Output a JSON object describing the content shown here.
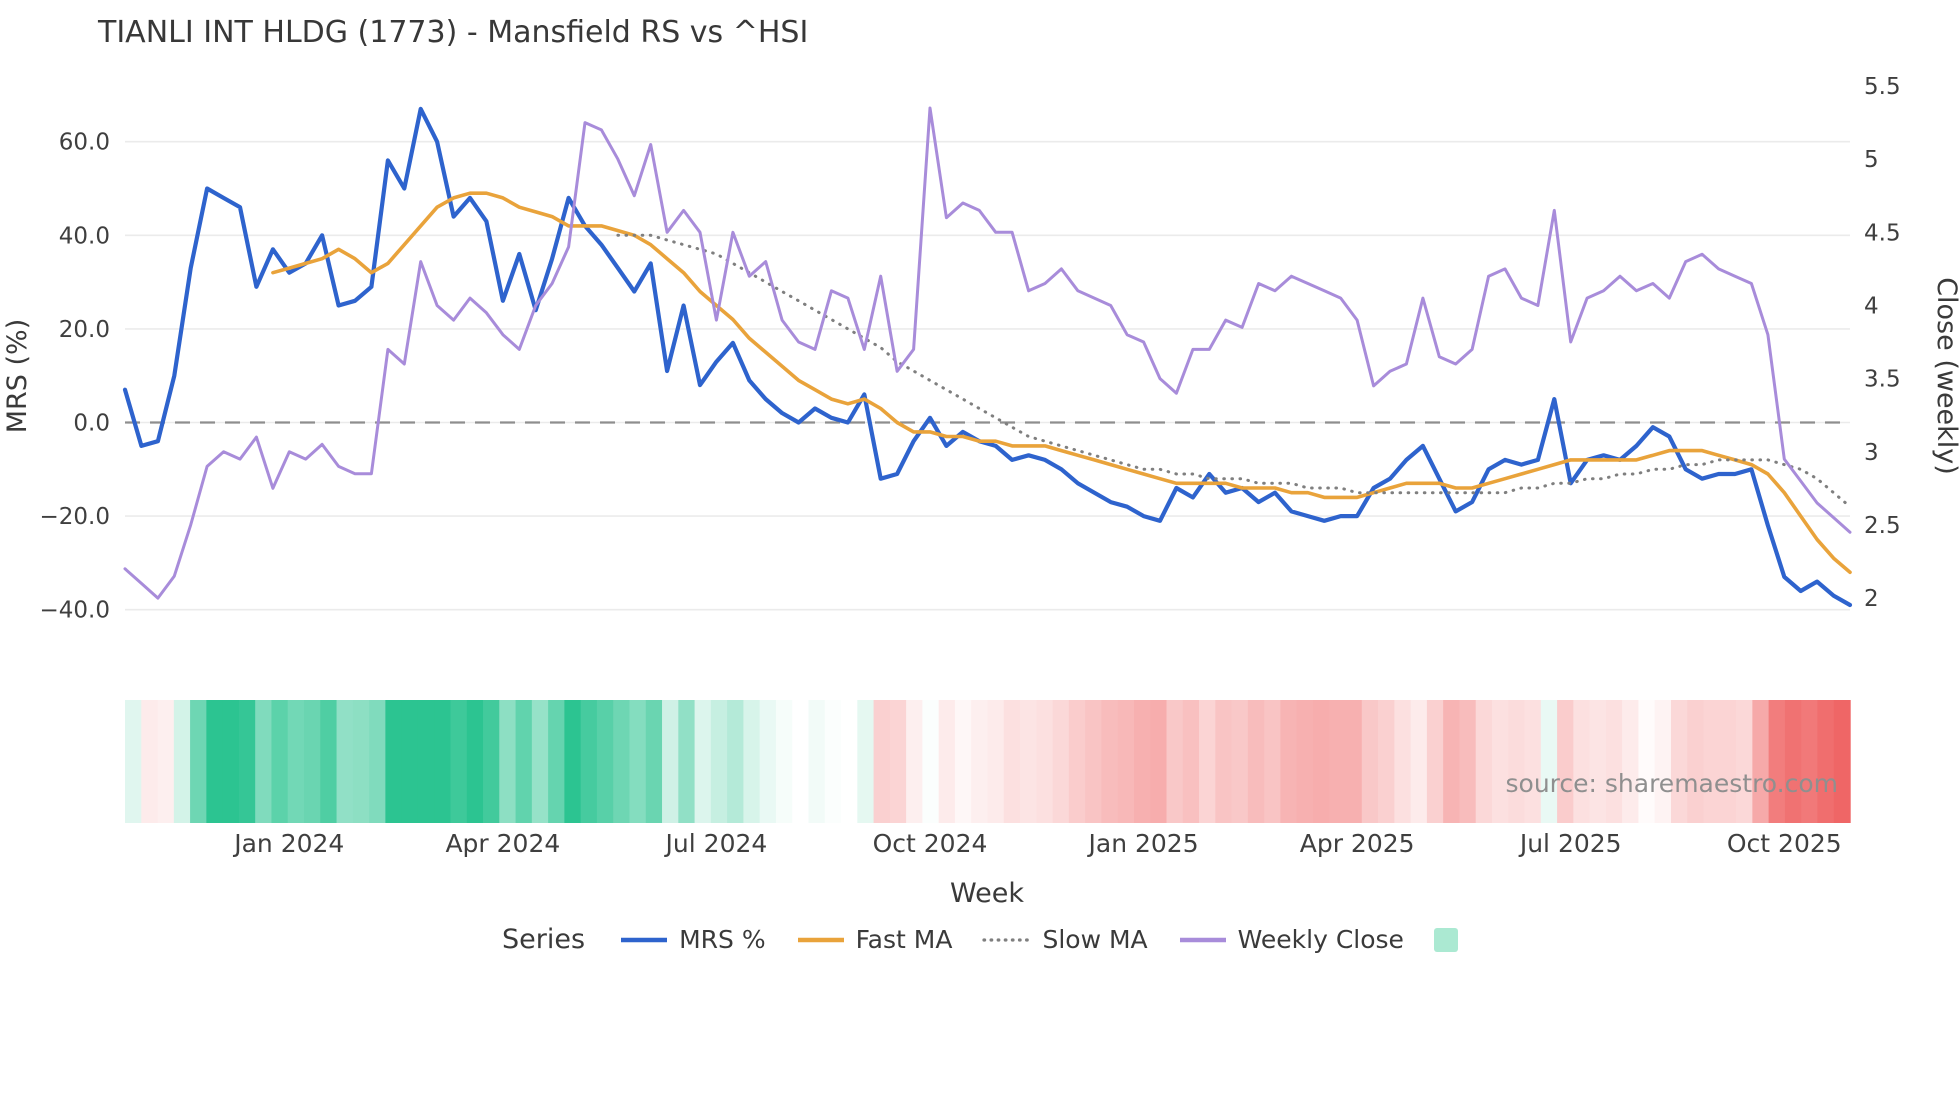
{
  "title": "TIANLI INT HLDG (1773) - Mansfield RS vs ^HSI",
  "source": "source: sharemaestro.com",
  "axes": {
    "left_label": "MRS (%)",
    "right_label": "Close (weekly)",
    "x_label": "Week",
    "left_ticks": [
      "60.0",
      "40.0",
      "20.0",
      "0.0",
      "−20.0",
      "−40.0"
    ],
    "left_tick_values": [
      60,
      40,
      20,
      0,
      -20,
      -40
    ],
    "right_ticks": [
      "5.5",
      "5",
      "4.5",
      "4",
      "3.5",
      "3",
      "2.5",
      "2"
    ],
    "right_tick_values": [
      5.5,
      5,
      4.5,
      4,
      3.5,
      3,
      2.5,
      2
    ],
    "x_ticks": [
      "Jan 2024",
      "Apr 2024",
      "Jul 2024",
      "Oct 2024",
      "Jan 2025",
      "Apr 2025",
      "Jul 2025",
      "Oct 2025"
    ],
    "x_tick_indices": [
      10,
      23,
      36,
      49,
      62,
      75,
      88,
      101
    ]
  },
  "legend": {
    "title": "Series",
    "items": [
      {
        "label": "MRS %",
        "color": "#2e63cd",
        "swatch": "line-solid"
      },
      {
        "label": "Fast MA",
        "color": "#e9a33b",
        "swatch": "line-solid"
      },
      {
        "label": "Slow MA",
        "color": "#7f7f7f",
        "swatch": "line-dotted"
      },
      {
        "label": "Weekly Close",
        "color": "#a88cda",
        "swatch": "line-solid"
      },
      {
        "label": "",
        "color": "#abe9d2",
        "swatch": "box"
      }
    ]
  },
  "colors": {
    "mrs": "#2e63cd",
    "fast_ma": "#e9a33b",
    "slow_ma": "#7f7f7f",
    "weekly_close": "#a88cda",
    "zero_line": "#8e8e8e",
    "grid": "#ebebeb",
    "text": "#3f3f3f",
    "heat_positive": "#2cc491",
    "heat_negative": "#ee5a5a"
  },
  "chart_data": {
    "type": "line",
    "title": "TIANLI INT HLDG (1773) - Mansfield RS vs ^HSI",
    "xlabel": "Week",
    "ylabel": "MRS (%)",
    "ylabel_right": "Close (weekly)",
    "x_unit": "weekly index (approx. Nov 2023 to Nov 2025)",
    "n_points": 106,
    "ylim_left": [
      -45,
      70
    ],
    "ylim_right": [
      2,
      5.5
    ],
    "grid": true,
    "legend_position": "bottom",
    "zero_reference_line": 0,
    "x_tick_labels": [
      "Jan 2024",
      "Apr 2024",
      "Jul 2024",
      "Oct 2024",
      "Jan 2025",
      "Apr 2025",
      "Jul 2025",
      "Oct 2025"
    ],
    "x_tick_indices": [
      10,
      23,
      36,
      49,
      62,
      75,
      88,
      101
    ],
    "series": [
      {
        "name": "MRS %",
        "axis": "left",
        "color": "#2e63cd",
        "style": "solid",
        "values": [
          7,
          -5,
          -4,
          10,
          33,
          50,
          48,
          46,
          29,
          37,
          32,
          34,
          40,
          25,
          26,
          29,
          56,
          50,
          67,
          60,
          44,
          48,
          43,
          26,
          36,
          24,
          35,
          48,
          42,
          38,
          33,
          28,
          34,
          11,
          25,
          8,
          13,
          17,
          9,
          5,
          2,
          0,
          3,
          1,
          0,
          6,
          -12,
          -11,
          -4,
          1,
          -5,
          -2,
          -4,
          -5,
          -8,
          -7,
          -8,
          -10,
          -13,
          -15,
          -17,
          -18,
          -20,
          -21,
          -14,
          -16,
          -11,
          -15,
          -14,
          -17,
          -15,
          -19,
          -20,
          -21,
          -20,
          -20,
          -14,
          -12,
          -8,
          -5,
          -12,
          -19,
          -17,
          -10,
          -8,
          -9,
          -8,
          5,
          -13,
          -8,
          -7,
          -8,
          -5,
          -1,
          -3,
          -10,
          -12,
          -11,
          -11,
          -10,
          -22,
          -33,
          -36,
          -34,
          -37,
          -39
        ]
      },
      {
        "name": "Fast MA",
        "axis": "left",
        "color": "#e9a33b",
        "style": "solid",
        "values": [
          null,
          null,
          null,
          null,
          null,
          null,
          null,
          null,
          null,
          32,
          33,
          34,
          35,
          37,
          35,
          32,
          34,
          38,
          42,
          46,
          48,
          49,
          49,
          48,
          46,
          45,
          44,
          42,
          42,
          42,
          41,
          40,
          38,
          35,
          32,
          28,
          25,
          22,
          18,
          15,
          12,
          9,
          7,
          5,
          4,
          5,
          3,
          0,
          -2,
          -2,
          -3,
          -3,
          -4,
          -4,
          -5,
          -5,
          -5,
          -6,
          -7,
          -8,
          -9,
          -10,
          -11,
          -12,
          -13,
          -13,
          -13,
          -13,
          -14,
          -14,
          -14,
          -15,
          -15,
          -16,
          -16,
          -16,
          -15,
          -14,
          -13,
          -13,
          -13,
          -14,
          -14,
          -13,
          -12,
          -11,
          -10,
          -9,
          -8,
          -8,
          -8,
          -8,
          -8,
          -7,
          -6,
          -6,
          -6,
          -7,
          -8,
          -9,
          -11,
          -15,
          -20,
          -25,
          -29,
          -32
        ]
      },
      {
        "name": "Slow MA",
        "axis": "left",
        "color": "#7f7f7f",
        "style": "dotted",
        "values": [
          null,
          null,
          null,
          null,
          null,
          null,
          null,
          null,
          null,
          null,
          null,
          null,
          null,
          null,
          null,
          null,
          null,
          null,
          null,
          null,
          null,
          null,
          null,
          null,
          null,
          null,
          null,
          null,
          null,
          null,
          40,
          40,
          40,
          39,
          38,
          37,
          36,
          34,
          32,
          30,
          28,
          26,
          24,
          22,
          20,
          18,
          16,
          13,
          11,
          9,
          7,
          5,
          3,
          1,
          -1,
          -3,
          -4,
          -5,
          -6,
          -7,
          -8,
          -9,
          -10,
          -10,
          -11,
          -11,
          -12,
          -12,
          -12,
          -13,
          -13,
          -13,
          -14,
          -14,
          -14,
          -15,
          -15,
          -15,
          -15,
          -15,
          -15,
          -15,
          -15,
          -15,
          -15,
          -14,
          -14,
          -13,
          -13,
          -12,
          -12,
          -11,
          -11,
          -10,
          -10,
          -9,
          -9,
          -8,
          -8,
          -8,
          -8,
          -9,
          -10,
          -12,
          -15,
          -18
        ]
      },
      {
        "name": "Weekly Close",
        "axis": "right",
        "color": "#a88cda",
        "style": "solid",
        "values": [
          2.2,
          2.1,
          2.0,
          2.15,
          2.5,
          2.9,
          3.0,
          2.95,
          3.1,
          2.75,
          3.0,
          2.95,
          3.05,
          2.9,
          2.85,
          2.85,
          3.7,
          3.6,
          4.3,
          4.0,
          3.9,
          4.05,
          3.95,
          3.8,
          3.7,
          4.0,
          4.15,
          4.4,
          5.25,
          5.2,
          5.0,
          4.75,
          5.1,
          4.5,
          4.65,
          4.5,
          3.9,
          4.5,
          4.2,
          4.3,
          3.9,
          3.75,
          3.7,
          4.1,
          4.05,
          3.7,
          4.2,
          3.55,
          3.7,
          5.35,
          4.6,
          4.7,
          4.65,
          4.5,
          4.5,
          4.1,
          4.15,
          4.25,
          4.1,
          4.05,
          4.0,
          3.8,
          3.75,
          3.5,
          3.4,
          3.7,
          3.7,
          3.9,
          3.85,
          4.15,
          4.1,
          4.2,
          4.15,
          4.1,
          4.05,
          3.9,
          3.45,
          3.55,
          3.6,
          4.05,
          3.65,
          3.6,
          3.7,
          4.2,
          4.25,
          4.05,
          4.0,
          4.65,
          3.75,
          4.05,
          4.1,
          4.2,
          4.1,
          4.15,
          4.05,
          4.3,
          4.35,
          4.25,
          4.2,
          4.15,
          3.8,
          2.95,
          2.8,
          2.65,
          2.55,
          2.45
        ]
      }
    ],
    "heatmap_strip": {
      "source_series": "MRS %",
      "description": "weekly color band: green when MRS positive, red when negative, intensity by magnitude",
      "positive_color": "#2cc491",
      "negative_color": "#ee5a5a"
    }
  }
}
